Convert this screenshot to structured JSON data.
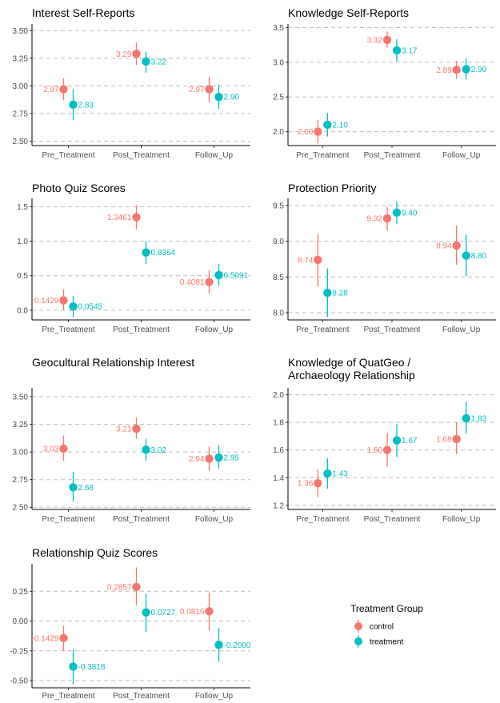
{
  "legend": {
    "title": "Treatment Group",
    "entries": [
      {
        "name": "control",
        "color": "#F8766D"
      },
      {
        "name": "treatment",
        "color": "#00BFC4"
      }
    ]
  },
  "chart_data": [
    {
      "type": "scatter",
      "title": [
        "Interest Self-Reports"
      ],
      "categories": [
        "Pre_Treatment",
        "Post_Treatment",
        "Follow_Up"
      ],
      "ylim": [
        2.46,
        3.56
      ],
      "yticks": [
        2.5,
        2.75,
        3.0,
        3.25,
        3.5
      ],
      "yticklabels": [
        "2.50",
        "2.75",
        "3.00",
        "3.25",
        "3.50"
      ],
      "grid": true,
      "series": [
        {
          "name": "control",
          "color": "#F8766D",
          "values": [
            2.97,
            3.29,
            2.97
          ],
          "ci_low": [
            2.87,
            3.19,
            2.85
          ],
          "ci_high": [
            3.07,
            3.39,
            3.08
          ],
          "labels": [
            "2.97",
            "3.29",
            "2.97"
          ]
        },
        {
          "name": "treatment",
          "color": "#00BFC4",
          "values": [
            2.83,
            3.22,
            2.9
          ],
          "ci_low": [
            2.69,
            3.12,
            2.79
          ],
          "ci_high": [
            2.97,
            3.31,
            3.01
          ],
          "labels": [
            "2.83",
            "3.22",
            "2.90"
          ]
        }
      ]
    },
    {
      "type": "scatter",
      "title": [
        "Knowledge Self-Reports"
      ],
      "categories": [
        "Pre_Treatment",
        "Post_Treatment",
        "Follow_Up"
      ],
      "ylim": [
        1.8,
        3.55
      ],
      "yticks": [
        2.0,
        2.5,
        3.0,
        3.5
      ],
      "yticklabels": [
        "2.0",
        "2.5",
        "3.0",
        "3.5"
      ],
      "grid": true,
      "series": [
        {
          "name": "control",
          "color": "#F8766D",
          "values": [
            2.0,
            3.32,
            2.89
          ],
          "ci_low": [
            1.83,
            3.21,
            2.76
          ],
          "ci_high": [
            2.17,
            3.44,
            3.02
          ],
          "labels": [
            "2.00",
            "3.32",
            "2.89"
          ]
        },
        {
          "name": "treatment",
          "color": "#00BFC4",
          "values": [
            2.1,
            3.17,
            2.9
          ],
          "ci_low": [
            1.93,
            3.01,
            2.75
          ],
          "ci_high": [
            2.27,
            3.33,
            3.05
          ],
          "labels": [
            "2.10",
            "3.17",
            "2.90"
          ]
        }
      ]
    },
    {
      "type": "scatter",
      "title": [
        "Photo Quiz Scores"
      ],
      "categories": [
        "Pre_Treatment",
        "Post_Treatment",
        "Follow_Up"
      ],
      "ylim": [
        -0.14,
        1.62
      ],
      "yticks": [
        0.0,
        0.5,
        1.0,
        1.5
      ],
      "yticklabels": [
        "0.0",
        "0.5",
        "1.0",
        "1.5"
      ],
      "grid": true,
      "series": [
        {
          "name": "control",
          "color": "#F8766D",
          "values": [
            0.1429,
            1.3461,
            0.4081
          ],
          "ci_low": [
            0.0,
            1.17,
            0.24
          ],
          "ci_high": [
            0.3,
            1.52,
            0.58
          ],
          "labels": [
            "0.1429",
            "1.3461",
            "0.4081"
          ]
        },
        {
          "name": "treatment",
          "color": "#00BFC4",
          "values": [
            0.0545,
            0.8364,
            0.5091
          ],
          "ci_low": [
            -0.1,
            0.67,
            0.35
          ],
          "ci_high": [
            0.21,
            1.0,
            0.67
          ],
          "labels": [
            "0.0545",
            "0.8364",
            "0.5091"
          ]
        }
      ]
    },
    {
      "type": "scatter",
      "title": [
        "Protection Priority"
      ],
      "categories": [
        "Pre_Treatment",
        "Post_Treatment",
        "Follow_Up"
      ],
      "ylim": [
        7.9,
        9.6
      ],
      "yticks": [
        8.0,
        8.5,
        9.0,
        9.5
      ],
      "yticklabels": [
        "8.0",
        "8.5",
        "9.0",
        "9.5"
      ],
      "grid": true,
      "series": [
        {
          "name": "control",
          "color": "#F8766D",
          "values": [
            8.74,
            9.32,
            8.94
          ],
          "ci_low": [
            8.37,
            9.15,
            8.67
          ],
          "ci_high": [
            9.1,
            9.48,
            9.22
          ],
          "labels": [
            "8.74",
            "9.32",
            "8.94"
          ]
        },
        {
          "name": "treatment",
          "color": "#00BFC4",
          "values": [
            8.28,
            9.4,
            8.8
          ],
          "ci_low": [
            7.94,
            9.24,
            8.51
          ],
          "ci_high": [
            8.62,
            9.56,
            9.09
          ],
          "labels": [
            "8.28",
            "9.40",
            "8.80"
          ]
        }
      ]
    },
    {
      "type": "scatter",
      "title": [
        "Geocultural Relationship Interest"
      ],
      "categories": [
        "Pre_Treatment",
        "Post_Treatment",
        "Follow_Up"
      ],
      "ylim": [
        2.48,
        3.58
      ],
      "yticks": [
        2.5,
        2.75,
        3.0,
        3.25,
        3.5
      ],
      "yticklabels": [
        "2.50",
        "2.75",
        "3.00",
        "3.25",
        "3.50"
      ],
      "grid": true,
      "series": [
        {
          "name": "control",
          "color": "#F8766D",
          "values": [
            3.03,
            3.21,
            2.94
          ],
          "ci_low": [
            2.92,
            3.12,
            2.83
          ],
          "ci_high": [
            3.15,
            3.31,
            3.05
          ],
          "labels": [
            "3.03",
            "3.21",
            "2.94"
          ]
        },
        {
          "name": "treatment",
          "color": "#00BFC4",
          "values": [
            2.68,
            3.02,
            2.95
          ],
          "ci_low": [
            2.55,
            2.92,
            2.85
          ],
          "ci_high": [
            2.82,
            3.12,
            3.06
          ],
          "labels": [
            "2.68",
            "3.02",
            "2.95"
          ]
        }
      ]
    },
    {
      "type": "scatter",
      "title": [
        "Knowledge of QuatGeo /",
        " Archaeology Relationship"
      ],
      "categories": [
        "Pre_Treatment",
        "Post_Treatment",
        "Follow_Up"
      ],
      "ylim": [
        1.17,
        2.05
      ],
      "yticks": [
        1.2,
        1.4,
        1.6,
        1.8,
        2.0
      ],
      "yticklabels": [
        "1.2",
        "1.4",
        "1.6",
        "1.8",
        "2.0"
      ],
      "grid": true,
      "series": [
        {
          "name": "control",
          "color": "#F8766D",
          "values": [
            1.36,
            1.6,
            1.68
          ],
          "ci_low": [
            1.26,
            1.48,
            1.57
          ],
          "ci_high": [
            1.46,
            1.72,
            1.8
          ],
          "labels": [
            "1.36",
            "1.60",
            "1.68"
          ]
        },
        {
          "name": "treatment",
          "color": "#00BFC4",
          "values": [
            1.43,
            1.67,
            1.83
          ],
          "ci_low": [
            1.32,
            1.55,
            1.72
          ],
          "ci_high": [
            1.54,
            1.79,
            1.95
          ],
          "labels": [
            "1.43",
            "1.67",
            "1.83"
          ]
        }
      ]
    },
    {
      "type": "scatter",
      "title": [
        "Relationship Quiz Scores"
      ],
      "categories": [
        "Pre_Treatment",
        "Post_Treatment",
        "Follow_Up"
      ],
      "ylim": [
        -0.56,
        0.48
      ],
      "yticks": [
        -0.5,
        -0.25,
        0.0,
        0.25
      ],
      "yticklabels": [
        "-0.50",
        "-0.25",
        "0.00",
        "0.25"
      ],
      "grid": true,
      "series": [
        {
          "name": "control",
          "color": "#F8766D",
          "values": [
            -0.1429,
            0.2857,
            0.0816
          ],
          "ci_low": [
            -0.25,
            0.13,
            -0.08
          ],
          "ci_high": [
            -0.04,
            0.45,
            0.24
          ],
          "labels": [
            "-0.1429",
            "0.2857",
            "0.0816"
          ]
        },
        {
          "name": "treatment",
          "color": "#00BFC4",
          "values": [
            -0.3818,
            0.0727,
            -0.2
          ],
          "ci_low": [
            -0.53,
            -0.09,
            -0.34
          ],
          "ci_high": [
            -0.24,
            0.23,
            -0.06
          ],
          "labels": [
            "-0.3818",
            "0.0727",
            "-0.2000"
          ]
        }
      ]
    }
  ]
}
